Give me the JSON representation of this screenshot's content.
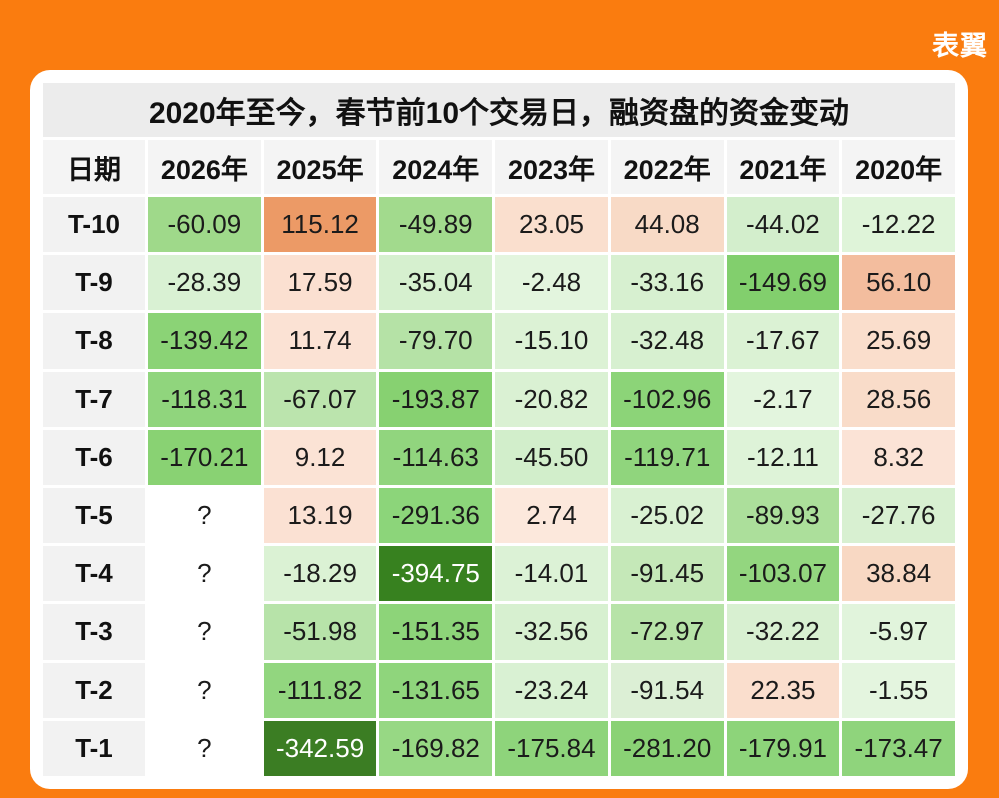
{
  "page": {
    "background_color": "#FA7C0F",
    "card_color": "#FFFFFF",
    "logo_text": "表翼",
    "logo_color": "#FFFFFF"
  },
  "table": {
    "title": "2020年至今，春节前10个交易日，融资盘的资金变动",
    "title_band_color": "#ECECEC",
    "header_color": "#F4F4F4",
    "label_color": "#F2F2F2",
    "default_text_color": "#1B1B1B",
    "columns": [
      "日期",
      "2026年",
      "2025年",
      "2024年",
      "2023年",
      "2022年",
      "2021年",
      "2020年"
    ],
    "rows": [
      {
        "label": "T-10",
        "cells": [
          {
            "v": "-60.09",
            "bg": "#9FD98A"
          },
          {
            "v": "115.12",
            "bg": "#EC9A66"
          },
          {
            "v": "-49.89",
            "bg": "#A2DA8D"
          },
          {
            "v": "23.05",
            "bg": "#FADFCE"
          },
          {
            "v": "44.08",
            "bg": "#F8DAC6"
          },
          {
            "v": "-44.02",
            "bg": "#D3EECC"
          },
          {
            "v": "-12.22",
            "bg": "#DFF4D9"
          }
        ]
      },
      {
        "label": "T-9",
        "cells": [
          {
            "v": "-28.39",
            "bg": "#D9F1D3"
          },
          {
            "v": "17.59",
            "bg": "#FBE0D1"
          },
          {
            "v": "-35.04",
            "bg": "#D6F0CF"
          },
          {
            "v": "-2.48",
            "bg": "#E3F5DE"
          },
          {
            "v": "-33.16",
            "bg": "#D7F0D0"
          },
          {
            "v": "-149.69",
            "bg": "#82CF6D"
          },
          {
            "v": "56.10",
            "bg": "#F3BD9E"
          }
        ]
      },
      {
        "label": "T-8",
        "cells": [
          {
            "v": "-139.42",
            "bg": "#8BD376"
          },
          {
            "v": "11.74",
            "bg": "#FBE2D4"
          },
          {
            "v": "-79.70",
            "bg": "#B5E2A6"
          },
          {
            "v": "-15.10",
            "bg": "#DCF2D5"
          },
          {
            "v": "-32.48",
            "bg": "#D7F0D0"
          },
          {
            "v": "-17.67",
            "bg": "#DBF2D4"
          },
          {
            "v": "25.69",
            "bg": "#FADECC"
          }
        ]
      },
      {
        "label": "T-7",
        "cells": [
          {
            "v": "-118.31",
            "bg": "#90D57D"
          },
          {
            "v": "-67.07",
            "bg": "#BBE4AD"
          },
          {
            "v": "-193.87",
            "bg": "#87D171"
          },
          {
            "v": "-20.82",
            "bg": "#DAF1D3"
          },
          {
            "v": "-102.96",
            "bg": "#8CD478"
          },
          {
            "v": "-2.17",
            "bg": "#E3F5DE"
          },
          {
            "v": "28.56",
            "bg": "#F9DCC9"
          }
        ]
      },
      {
        "label": "T-6",
        "cells": [
          {
            "v": "-170.21",
            "bg": "#89D273"
          },
          {
            "v": "9.12",
            "bg": "#FBE3D5"
          },
          {
            "v": "-114.63",
            "bg": "#91D57E"
          },
          {
            "v": "-45.50",
            "bg": "#D2EECB"
          },
          {
            "v": "-119.71",
            "bg": "#90D57D"
          },
          {
            "v": "-12.11",
            "bg": "#DEF3D8"
          },
          {
            "v": "8.32",
            "bg": "#FBE3D6"
          }
        ]
      },
      {
        "label": "T-5",
        "cells": [
          {
            "v": "?",
            "bg": "#FFFFFF"
          },
          {
            "v": "13.19",
            "bg": "#FBE1D3"
          },
          {
            "v": "-291.36",
            "bg": "#8CD57A"
          },
          {
            "v": "2.74",
            "bg": "#FCE8DC"
          },
          {
            "v": "-25.02",
            "bg": "#D9F1D2"
          },
          {
            "v": "-89.93",
            "bg": "#ACDF9B"
          },
          {
            "v": "-27.76",
            "bg": "#D8F0D1"
          }
        ]
      },
      {
        "label": "T-4",
        "cells": [
          {
            "v": "?",
            "bg": "#FFFFFF"
          },
          {
            "v": "-18.29",
            "bg": "#DBF2D4"
          },
          {
            "v": "-394.75",
            "bg": "#37811F",
            "fg": "#FFFFFF"
          },
          {
            "v": "-14.01",
            "bg": "#DCF2D6"
          },
          {
            "v": "-91.45",
            "bg": "#C5E8B8"
          },
          {
            "v": "-103.07",
            "bg": "#93D67F"
          },
          {
            "v": "38.84",
            "bg": "#F8D8C3"
          }
        ]
      },
      {
        "label": "T-3",
        "cells": [
          {
            "v": "?",
            "bg": "#FFFFFF"
          },
          {
            "v": "-51.98",
            "bg": "#B7E3A9"
          },
          {
            "v": "-151.35",
            "bg": "#8DD479"
          },
          {
            "v": "-32.56",
            "bg": "#D7F0D0"
          },
          {
            "v": "-72.97",
            "bg": "#B7E3A8"
          },
          {
            "v": "-32.22",
            "bg": "#D8F0D1"
          },
          {
            "v": "-5.97",
            "bg": "#E1F4DC"
          }
        ]
      },
      {
        "label": "T-2",
        "cells": [
          {
            "v": "?",
            "bg": "#FFFFFF"
          },
          {
            "v": "-111.82",
            "bg": "#92D67F"
          },
          {
            "v": "-131.65",
            "bg": "#8FD57C"
          },
          {
            "v": "-23.24",
            "bg": "#D9F1D3"
          },
          {
            "v": "-91.54",
            "bg": "#DCEFD5"
          },
          {
            "v": "22.35",
            "bg": "#FADECD"
          },
          {
            "v": "-1.55",
            "bg": "#E4F5DF"
          }
        ]
      },
      {
        "label": "T-1",
        "cells": [
          {
            "v": "?",
            "bg": "#FFFFFF"
          },
          {
            "v": "-342.59",
            "bg": "#3B7D23",
            "fg": "#FFFFFF"
          },
          {
            "v": "-169.82",
            "bg": "#97D884"
          },
          {
            "v": "-175.84",
            "bg": "#8ED47B"
          },
          {
            "v": "-281.20",
            "bg": "#8AD275"
          },
          {
            "v": "-179.91",
            "bg": "#8DD47A"
          },
          {
            "v": "-173.47",
            "bg": "#8FD47C"
          }
        ]
      }
    ]
  },
  "chart_data": {
    "type": "heatmap",
    "title": "2020年至今，春节前10个交易日，融资盘的资金变动",
    "row_header": "日期",
    "columns": [
      "2026年",
      "2025年",
      "2024年",
      "2023年",
      "2022年",
      "2021年",
      "2020年"
    ],
    "row_labels": [
      "T-10",
      "T-9",
      "T-8",
      "T-7",
      "T-6",
      "T-5",
      "T-4",
      "T-3",
      "T-2",
      "T-1"
    ],
    "values": [
      [
        -60.09,
        115.12,
        -49.89,
        23.05,
        44.08,
        -44.02,
        -12.22
      ],
      [
        -28.39,
        17.59,
        -35.04,
        -2.48,
        -33.16,
        -149.69,
        56.1
      ],
      [
        -139.42,
        11.74,
        -79.7,
        -15.1,
        -32.48,
        -17.67,
        25.69
      ],
      [
        -118.31,
        -67.07,
        -193.87,
        -20.82,
        -102.96,
        -2.17,
        28.56
      ],
      [
        -170.21,
        9.12,
        -114.63,
        -45.5,
        -119.71,
        -12.11,
        8.32
      ],
      [
        null,
        13.19,
        -291.36,
        2.74,
        -25.02,
        -89.93,
        -27.76
      ],
      [
        null,
        -18.29,
        -394.75,
        -14.01,
        -91.45,
        -103.07,
        38.84
      ],
      [
        null,
        -51.98,
        -151.35,
        -32.56,
        -72.97,
        -32.22,
        -5.97
      ],
      [
        null,
        -111.82,
        -131.65,
        -23.24,
        -91.54,
        22.35,
        -1.55
      ],
      [
        null,
        -342.59,
        -169.82,
        -175.84,
        -281.2,
        -179.91,
        -173.47
      ]
    ],
    "missing_value_display": "?",
    "color_scale": {
      "negative_min": "#37811F",
      "negative_mid": "#8FD57C",
      "near_zero": "#FFFFFF",
      "positive_max": "#EC9A66"
    },
    "legend_position": "none",
    "grid": "white gaps between cells"
  }
}
